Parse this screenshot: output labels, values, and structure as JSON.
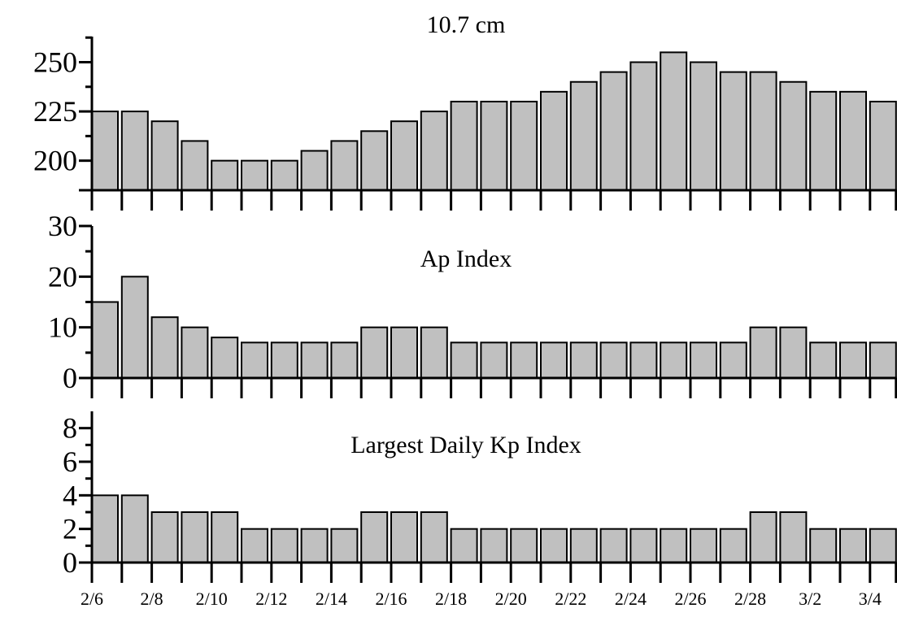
{
  "chart_data": [
    {
      "type": "bar",
      "title": "10.7 cm",
      "categories": [
        "2/6",
        "2/7",
        "2/8",
        "2/9",
        "2/10",
        "2/11",
        "2/12",
        "2/13",
        "2/14",
        "2/15",
        "2/16",
        "2/17",
        "2/18",
        "2/19",
        "2/20",
        "2/21",
        "2/22",
        "2/23",
        "2/24",
        "2/25",
        "2/26",
        "2/27",
        "2/28",
        "2/29",
        "3/1",
        "3/2",
        "3/3"
      ],
      "values": [
        225,
        225,
        220,
        210,
        200,
        200,
        200,
        205,
        210,
        215,
        220,
        225,
        230,
        230,
        230,
        235,
        240,
        245,
        250,
        255,
        250,
        245,
        245,
        240,
        235,
        235,
        230
      ],
      "ylim": [
        185,
        263
      ],
      "yticks": [
        200,
        225,
        250
      ],
      "ytick_labels": [
        "200",
        "225",
        "250"
      ],
      "yminor": [
        212.5,
        237.5,
        262.5
      ],
      "bar_fill": "#c0c0c0"
    },
    {
      "type": "bar",
      "title": "Ap Index",
      "categories": [
        "2/6",
        "2/7",
        "2/8",
        "2/9",
        "2/10",
        "2/11",
        "2/12",
        "2/13",
        "2/14",
        "2/15",
        "2/16",
        "2/17",
        "2/18",
        "2/19",
        "2/20",
        "2/21",
        "2/22",
        "2/23",
        "2/24",
        "2/25",
        "2/26",
        "2/27",
        "2/28",
        "2/29",
        "3/1",
        "3/2",
        "3/3"
      ],
      "values": [
        15,
        20,
        12,
        10,
        8,
        7,
        7,
        7,
        7,
        10,
        10,
        10,
        7,
        7,
        7,
        7,
        7,
        7,
        7,
        7,
        7,
        7,
        10,
        10,
        7,
        7,
        7
      ],
      "ylim": [
        0,
        30
      ],
      "yticks": [
        0,
        10,
        20,
        30
      ],
      "ytick_labels": [
        "0",
        "10",
        "20",
        "30"
      ],
      "yminor": [
        5,
        15,
        25
      ],
      "bar_fill": "#c0c0c0"
    },
    {
      "type": "bar",
      "title": "Largest Daily Kp Index",
      "categories": [
        "2/6",
        "2/7",
        "2/8",
        "2/9",
        "2/10",
        "2/11",
        "2/12",
        "2/13",
        "2/14",
        "2/15",
        "2/16",
        "2/17",
        "2/18",
        "2/19",
        "2/20",
        "2/21",
        "2/22",
        "2/23",
        "2/24",
        "2/25",
        "2/26",
        "2/27",
        "2/28",
        "2/29",
        "3/1",
        "3/2",
        "3/3"
      ],
      "values": [
        4,
        4,
        3,
        3,
        3,
        2,
        2,
        2,
        2,
        3,
        3,
        3,
        2,
        2,
        2,
        2,
        2,
        2,
        2,
        2,
        2,
        2,
        3,
        3,
        2,
        2,
        2
      ],
      "ylim": [
        0,
        9
      ],
      "yticks": [
        0,
        2,
        4,
        6,
        8
      ],
      "ytick_labels": [
        "0",
        "2",
        "4",
        "6",
        "8"
      ],
      "yminor": [
        1,
        3,
        5,
        7
      ],
      "bar_fill": "#c0c0c0"
    }
  ],
  "x_tick_labels": [
    "2/6",
    "2/8",
    "2/10",
    "2/12",
    "2/14",
    "2/16",
    "2/18",
    "2/20",
    "2/22",
    "2/24",
    "2/26",
    "2/28",
    "3/2",
    "3/4"
  ]
}
